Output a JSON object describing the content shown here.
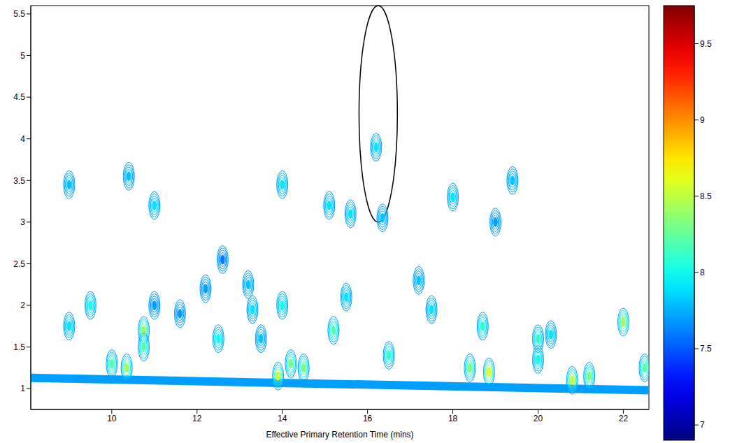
{
  "chart_data": {
    "type": "contour",
    "x_label": "Effective Primary Retention Time (mins)",
    "xlim": [
      8.1,
      22.6
    ],
    "xticks": [
      10,
      12,
      14,
      16,
      18,
      20,
      22
    ],
    "ylim": [
      0.75,
      5.6
    ],
    "yticks": [
      1,
      1.5,
      2,
      2.5,
      3,
      3.5,
      4,
      4.5,
      5,
      5.5
    ],
    "colorbar": {
      "range": [
        6.9,
        9.75
      ],
      "ticks": [
        7,
        7.5,
        8,
        8.5,
        9,
        9.5
      ]
    },
    "baseline": {
      "x": [
        8.1,
        22.6
      ],
      "y": [
        1.13,
        0.98
      ],
      "z": 7.7
    },
    "peaks": {
      "x": [
        9.0,
        9.0,
        9.5,
        10.0,
        10.35,
        10.4,
        10.75,
        10.75,
        11.0,
        11.0,
        11.6,
        12.2,
        12.5,
        12.6,
        13.2,
        13.3,
        13.5,
        13.9,
        14.0,
        14.0,
        14.2,
        14.5,
        15.1,
        15.2,
        15.5,
        15.6,
        16.2,
        16.35,
        16.5,
        17.2,
        17.5,
        18.0,
        18.4,
        18.7,
        18.85,
        19.0,
        19.4,
        20.0,
        20.0,
        20.3,
        20.8,
        21.2,
        22.0,
        22.5
      ],
      "y": [
        3.45,
        1.75,
        2.0,
        1.3,
        1.25,
        3.55,
        1.7,
        1.5,
        3.2,
        2.0,
        1.9,
        2.2,
        1.6,
        2.55,
        2.25,
        1.95,
        1.6,
        1.15,
        3.45,
        2.0,
        1.3,
        1.25,
        3.2,
        1.7,
        2.1,
        3.1,
        3.9,
        3.05,
        1.4,
        2.3,
        1.95,
        3.3,
        1.25,
        1.75,
        1.2,
        3.0,
        3.5,
        1.6,
        1.35,
        1.65,
        1.1,
        1.15,
        1.8,
        1.25
      ],
      "z": [
        7.8,
        7.9,
        8.0,
        8.2,
        8.4,
        7.8,
        8.4,
        8.2,
        7.9,
        7.7,
        7.7,
        7.7,
        8.0,
        7.6,
        7.8,
        7.9,
        7.8,
        8.5,
        7.9,
        8.0,
        8.3,
        8.3,
        7.9,
        8.2,
        7.9,
        7.9,
        7.9,
        7.8,
        8.1,
        7.8,
        7.9,
        7.9,
        8.3,
        8.1,
        8.6,
        7.7,
        7.8,
        8.1,
        8.0,
        7.9,
        8.5,
        8.3,
        8.4,
        8.2
      ]
    },
    "annotations": [
      {
        "shape": "ellipse",
        "x": [
          15.8,
          16.7
        ],
        "y": [
          3.0,
          5.6
        ]
      }
    ]
  }
}
